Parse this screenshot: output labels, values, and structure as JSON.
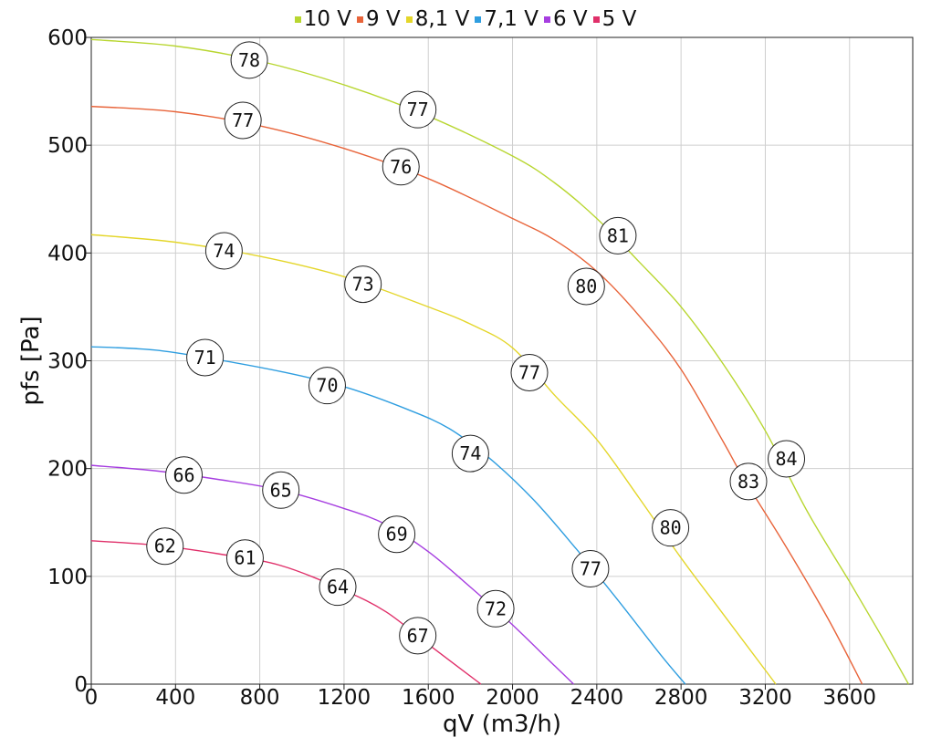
{
  "chart_data": {
    "type": "line",
    "xlabel": "qV (m3/h)",
    "ylabel": "pfs [Pa]",
    "xlim": [
      0,
      3900
    ],
    "ylim": [
      0,
      600
    ],
    "x_ticks": [
      "0",
      "400",
      "800",
      "1200",
      "1600",
      "2000",
      "2400",
      "2800",
      "3200",
      "3600"
    ],
    "y_ticks": [
      "0",
      "100",
      "200",
      "300",
      "400",
      "500",
      "600"
    ],
    "grid": true,
    "legend_position": "top-center",
    "series": [
      {
        "name": "10 V",
        "color": "#b8d630",
        "points": [
          [
            0,
            598
          ],
          [
            400,
            592
          ],
          [
            800,
            578
          ],
          [
            1200,
            556
          ],
          [
            1600,
            527
          ],
          [
            2000,
            490
          ],
          [
            2200,
            465
          ],
          [
            2400,
            432
          ],
          [
            2600,
            392
          ],
          [
            2800,
            350
          ],
          [
            3000,
            297
          ],
          [
            3200,
            235
          ],
          [
            3400,
            160
          ],
          [
            3600,
            95
          ],
          [
            3750,
            45
          ],
          [
            3880,
            0
          ]
        ],
        "labels": [
          {
            "x": 750,
            "y": 579,
            "text": "78"
          },
          {
            "x": 1550,
            "y": 533,
            "text": "77"
          },
          {
            "x": 2500,
            "y": 416,
            "text": "81"
          },
          {
            "x": 3300,
            "y": 209,
            "text": "84"
          }
        ]
      },
      {
        "name": "9 V",
        "color": "#e8643a",
        "points": [
          [
            0,
            536
          ],
          [
            400,
            531
          ],
          [
            800,
            518
          ],
          [
            1200,
            497
          ],
          [
            1600,
            469
          ],
          [
            2000,
            432
          ],
          [
            2200,
            412
          ],
          [
            2400,
            383
          ],
          [
            2600,
            342
          ],
          [
            2800,
            292
          ],
          [
            3000,
            225
          ],
          [
            3100,
            190
          ],
          [
            3300,
            127
          ],
          [
            3500,
            60
          ],
          [
            3660,
            0
          ]
        ],
        "labels": [
          {
            "x": 720,
            "y": 523,
            "text": "77"
          },
          {
            "x": 1470,
            "y": 480,
            "text": "76"
          },
          {
            "x": 2350,
            "y": 369,
            "text": "80"
          },
          {
            "x": 3120,
            "y": 188,
            "text": "83"
          }
        ]
      },
      {
        "name": "8,1 V",
        "color": "#e4d62a",
        "points": [
          [
            0,
            417
          ],
          [
            400,
            410
          ],
          [
            800,
            397
          ],
          [
            1200,
            378
          ],
          [
            1600,
            350
          ],
          [
            1800,
            334
          ],
          [
            2000,
            312
          ],
          [
            2200,
            268
          ],
          [
            2400,
            227
          ],
          [
            2600,
            173
          ],
          [
            2800,
            117
          ],
          [
            3000,
            65
          ],
          [
            3250,
            0
          ]
        ],
        "labels": [
          {
            "x": 630,
            "y": 402,
            "text": "74"
          },
          {
            "x": 1290,
            "y": 371,
            "text": "73"
          },
          {
            "x": 2080,
            "y": 289,
            "text": "77"
          },
          {
            "x": 2750,
            "y": 145,
            "text": "80"
          }
        ]
      },
      {
        "name": "7,1 V",
        "color": "#2f9ee0",
        "points": [
          [
            0,
            313
          ],
          [
            300,
            310
          ],
          [
            600,
            301
          ],
          [
            900,
            290
          ],
          [
            1200,
            276
          ],
          [
            1500,
            255
          ],
          [
            1700,
            237
          ],
          [
            1900,
            208
          ],
          [
            2100,
            171
          ],
          [
            2300,
            126
          ],
          [
            2500,
            78
          ],
          [
            2700,
            28
          ],
          [
            2820,
            0
          ]
        ],
        "labels": [
          {
            "x": 540,
            "y": 303,
            "text": "71"
          },
          {
            "x": 1120,
            "y": 277,
            "text": "70"
          },
          {
            "x": 1800,
            "y": 214,
            "text": "74"
          },
          {
            "x": 2370,
            "y": 107,
            "text": "77"
          }
        ]
      },
      {
        "name": "6 V",
        "color": "#a63ee0",
        "points": [
          [
            0,
            203
          ],
          [
            300,
            198
          ],
          [
            600,
            190
          ],
          [
            900,
            180
          ],
          [
            1200,
            163
          ],
          [
            1400,
            148
          ],
          [
            1600,
            123
          ],
          [
            1800,
            90
          ],
          [
            2000,
            55
          ],
          [
            2200,
            17
          ],
          [
            2290,
            0
          ]
        ],
        "labels": [
          {
            "x": 440,
            "y": 194,
            "text": "66"
          },
          {
            "x": 900,
            "y": 180,
            "text": "65"
          },
          {
            "x": 1450,
            "y": 139,
            "text": "69"
          },
          {
            "x": 1920,
            "y": 70,
            "text": "72"
          }
        ]
      },
      {
        "name": "5 V",
        "color": "#e0306a",
        "points": [
          [
            0,
            133
          ],
          [
            300,
            129
          ],
          [
            600,
            121
          ],
          [
            900,
            110
          ],
          [
            1200,
            87
          ],
          [
            1400,
            67
          ],
          [
            1600,
            37
          ],
          [
            1850,
            0
          ]
        ],
        "labels": [
          {
            "x": 350,
            "y": 128,
            "text": "62"
          },
          {
            "x": 730,
            "y": 117,
            "text": "61"
          },
          {
            "x": 1170,
            "y": 90,
            "text": "64"
          },
          {
            "x": 1550,
            "y": 45,
            "text": "67"
          }
        ]
      }
    ]
  }
}
